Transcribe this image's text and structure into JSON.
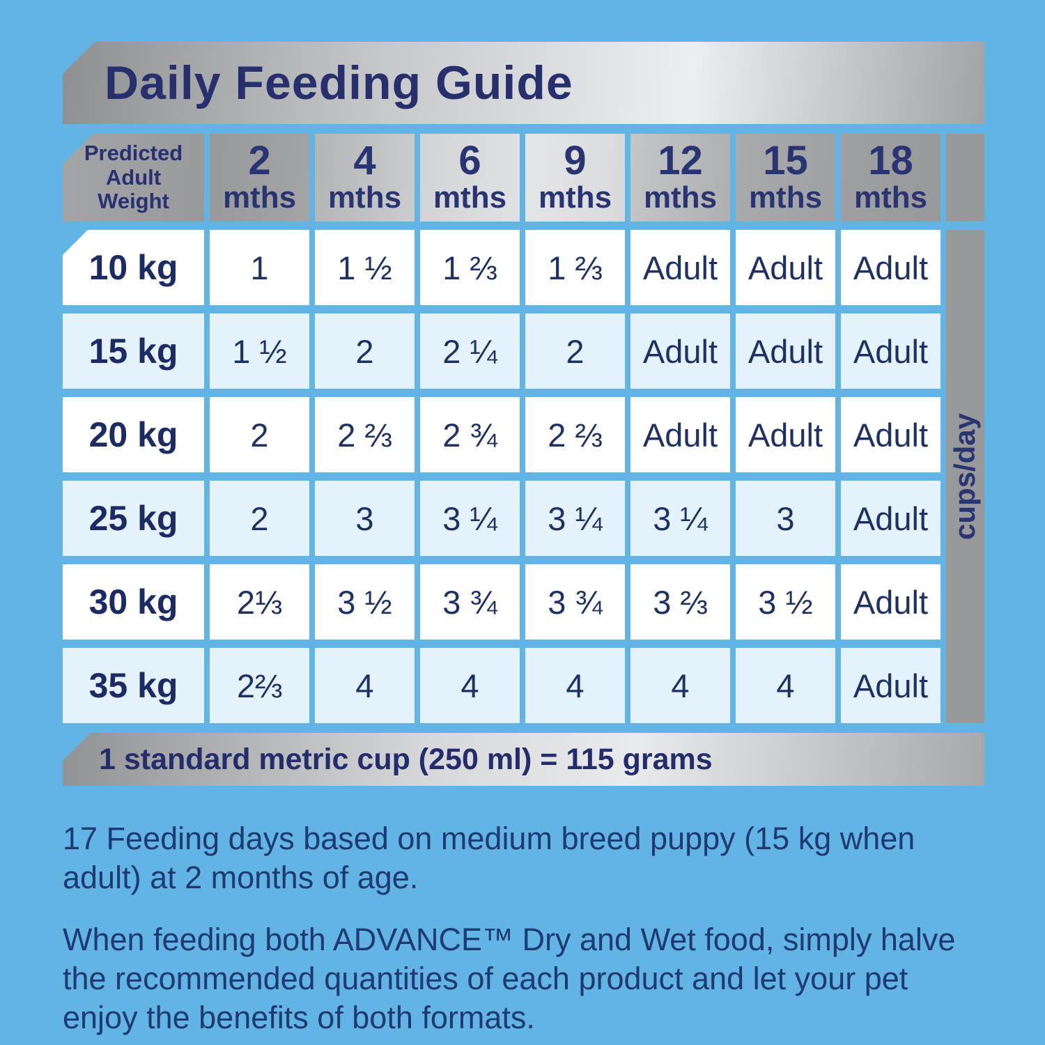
{
  "title": "Daily Feeding Guide",
  "table": {
    "corner_header": {
      "line1": "Predicted",
      "line2": "Adult",
      "line3": "Weight"
    },
    "age_columns": [
      {
        "num": "2",
        "unit": "mths"
      },
      {
        "num": "4",
        "unit": "mths"
      },
      {
        "num": "6",
        "unit": "mths"
      },
      {
        "num": "9",
        "unit": "mths"
      },
      {
        "num": "12",
        "unit": "mths"
      },
      {
        "num": "15",
        "unit": "mths"
      },
      {
        "num": "18",
        "unit": "mths"
      }
    ],
    "unit_label": "cups/day",
    "rows": [
      {
        "weight": "10 kg",
        "values": [
          "1",
          "1 ½",
          "1 ⅔",
          "1 ⅔",
          "Adult",
          "Adult",
          "Adult"
        ]
      },
      {
        "weight": "15 kg",
        "values": [
          "1 ½",
          "2",
          "2 ¼",
          "2",
          "Adult",
          "Adult",
          "Adult"
        ]
      },
      {
        "weight": "20 kg",
        "values": [
          "2",
          "2 ⅔",
          "2 ¾",
          "2 ⅔",
          "Adult",
          "Adult",
          "Adult"
        ]
      },
      {
        "weight": "25 kg",
        "values": [
          "2",
          "3",
          "3 ¼",
          "3 ¼",
          "3 ¼",
          "3",
          "Adult"
        ]
      },
      {
        "weight": "30 kg",
        "values": [
          "2⅓",
          "3 ½",
          "3 ¾",
          "3 ¾",
          "3 ⅔",
          "3 ½",
          "Adult"
        ]
      },
      {
        "weight": "35 kg",
        "values": [
          "2⅔",
          "4",
          "4",
          "4",
          "4",
          "4",
          "Adult"
        ]
      }
    ]
  },
  "footnote_bar": "1 standard metric cup (250 ml) = 115 grams",
  "notes": {
    "para1": "17 Feeding days based on medium breed puppy (15 kg when adult) at 2 months of age.",
    "para2": "When feeding both ADVANCE™ Dry and Wet food, simply halve the recommended quantities of each product and let your pet enjoy the benefits of both formats."
  },
  "colors": {
    "page_background": "#62b4e4",
    "navy_text": "#273070",
    "row_alt_blue": "#e4f2fb",
    "metallic_gray": "#97999b"
  },
  "chart_data": {
    "type": "table",
    "title": "Daily Feeding Guide",
    "unit": "cups/day",
    "columns": [
      "Predicted Adult Weight",
      "2 mths",
      "4 mths",
      "6 mths",
      "9 mths",
      "12 mths",
      "15 mths",
      "18 mths"
    ],
    "rows": [
      [
        "10 kg",
        "1",
        "1 ½",
        "1 ⅔",
        "1 ⅔",
        "Adult",
        "Adult",
        "Adult"
      ],
      [
        "15 kg",
        "1 ½",
        "2",
        "2 ¼",
        "2",
        "Adult",
        "Adult",
        "Adult"
      ],
      [
        "20 kg",
        "2",
        "2 ⅔",
        "2 ¾",
        "2 ⅔",
        "Adult",
        "Adult",
        "Adult"
      ],
      [
        "25 kg",
        "2",
        "3",
        "3 ¼",
        "3 ¼",
        "3 ¼",
        "3",
        "Adult"
      ],
      [
        "30 kg",
        "2⅓",
        "3 ½",
        "3 ¾",
        "3 ¾",
        "3 ⅔",
        "3 ½",
        "Adult"
      ],
      [
        "35 kg",
        "2⅔",
        "4",
        "4",
        "4",
        "4",
        "4",
        "Adult"
      ]
    ],
    "footnote": "1 standard metric cup (250 ml) = 115 grams"
  }
}
